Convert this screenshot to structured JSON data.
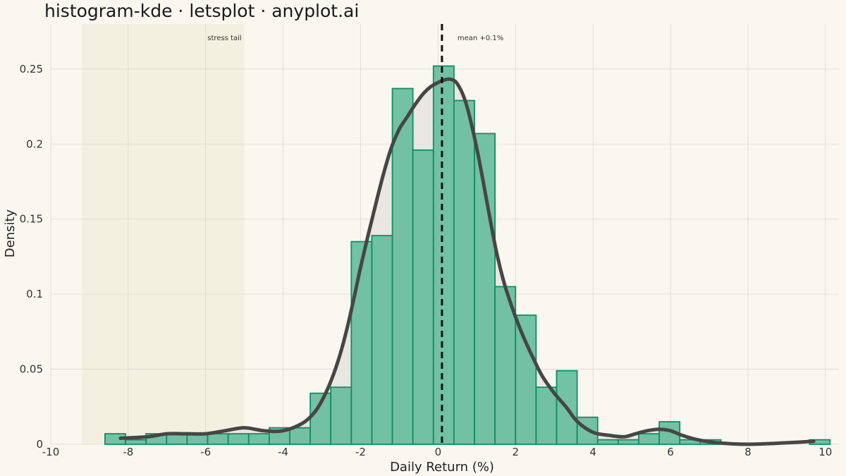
{
  "title": "histogram-kde · letsplot · anyplot.ai",
  "colors": {
    "background": "#faf7f1",
    "bar_fill": "#6cbfa0",
    "bar_stroke": "#0f8f64",
    "kde_line": "#474644",
    "kde_fill": "#e6e4e0",
    "stress_band": "#f3f0df",
    "grid": "#dcd8d0"
  },
  "chart_data": {
    "type": "bar",
    "xlabel": "Daily Return (%)",
    "ylabel": "Density",
    "xlim": [
      -10,
      10.35
    ],
    "ylim": [
      0,
      0.28
    ],
    "x_ticks": [
      -10,
      -8,
      -6,
      -4,
      -2,
      0,
      2,
      4,
      6,
      8,
      10
    ],
    "x_tick_labels": [
      "-10",
      "-8",
      "-6",
      "-4",
      "-2",
      "0",
      "2",
      "4",
      "6",
      "8",
      "10"
    ],
    "y_ticks": [
      0,
      0.05,
      0.1,
      0.15,
      0.2,
      0.25
    ],
    "y_tick_labels": [
      "0",
      "0.05",
      "0.1",
      "0.15",
      "0.2",
      "0.25"
    ],
    "grid": true,
    "bin_width": 0.53,
    "histogram": [
      {
        "x0": -8.6,
        "density": 0.007
      },
      {
        "x0": -8.07,
        "density": 0.003
      },
      {
        "x0": -7.54,
        "density": 0.007
      },
      {
        "x0": -7.01,
        "density": 0.007
      },
      {
        "x0": -6.48,
        "density": 0.007
      },
      {
        "x0": -5.95,
        "density": 0.007
      },
      {
        "x0": -5.42,
        "density": 0.007
      },
      {
        "x0": -4.89,
        "density": 0.007
      },
      {
        "x0": -4.36,
        "density": 0.011
      },
      {
        "x0": -3.83,
        "density": 0.011
      },
      {
        "x0": -3.3,
        "density": 0.034
      },
      {
        "x0": -2.77,
        "density": 0.038
      },
      {
        "x0": -2.24,
        "density": 0.135
      },
      {
        "x0": -1.71,
        "density": 0.139
      },
      {
        "x0": -1.18,
        "density": 0.237
      },
      {
        "x0": -0.65,
        "density": 0.196
      },
      {
        "x0": -0.12,
        "density": 0.252
      },
      {
        "x0": 0.41,
        "density": 0.229
      },
      {
        "x0": 0.94,
        "density": 0.207
      },
      {
        "x0": 1.47,
        "density": 0.105
      },
      {
        "x0": 2.0,
        "density": 0.086
      },
      {
        "x0": 2.53,
        "density": 0.038
      },
      {
        "x0": 3.06,
        "density": 0.049
      },
      {
        "x0": 3.59,
        "density": 0.018
      },
      {
        "x0": 4.12,
        "density": 0.003
      },
      {
        "x0": 4.65,
        "density": 0.003
      },
      {
        "x0": 5.18,
        "density": 0.007
      },
      {
        "x0": 5.71,
        "density": 0.015
      },
      {
        "x0": 6.24,
        "density": 0.003
      },
      {
        "x0": 6.77,
        "density": 0.003
      },
      {
        "x0": 9.59,
        "density": 0.003
      }
    ],
    "kde": {
      "x": [
        -8.2,
        -7.5,
        -7.0,
        -6.5,
        -6.0,
        -5.5,
        -5.0,
        -4.5,
        -4.0,
        -3.5,
        -3.2,
        -3.0,
        -2.8,
        -2.6,
        -2.4,
        -2.2,
        -2.0,
        -1.8,
        -1.6,
        -1.4,
        -1.2,
        -1.0,
        -0.8,
        -0.6,
        -0.4,
        -0.2,
        0.0,
        0.2,
        0.35,
        0.5,
        0.7,
        0.9,
        1.1,
        1.3,
        1.5,
        1.7,
        1.9,
        2.1,
        2.3,
        2.5,
        2.7,
        3.0,
        3.3,
        3.6,
        4.0,
        4.4,
        4.8,
        5.1,
        5.4,
        5.7,
        6.0,
        6.3,
        6.7,
        7.2,
        8.0,
        9.0,
        9.7
      ],
      "y": [
        0.004,
        0.005,
        0.007,
        0.007,
        0.007,
        0.009,
        0.011,
        0.009,
        0.009,
        0.014,
        0.021,
        0.029,
        0.04,
        0.054,
        0.072,
        0.094,
        0.118,
        0.14,
        0.161,
        0.181,
        0.198,
        0.21,
        0.218,
        0.226,
        0.233,
        0.238,
        0.241,
        0.243,
        0.243,
        0.24,
        0.229,
        0.209,
        0.184,
        0.156,
        0.129,
        0.108,
        0.092,
        0.078,
        0.066,
        0.055,
        0.045,
        0.034,
        0.025,
        0.015,
        0.008,
        0.006,
        0.005,
        0.007,
        0.009,
        0.01,
        0.009,
        0.006,
        0.003,
        0.001,
        0.0,
        0.001,
        0.002
      ]
    },
    "mean_line": {
      "x": 0.1,
      "label": "mean +0.1%"
    },
    "shaded_region": {
      "x_start": -9.2,
      "x_end": -5.0,
      "y_top": 0.28,
      "label": "stress tail"
    }
  }
}
